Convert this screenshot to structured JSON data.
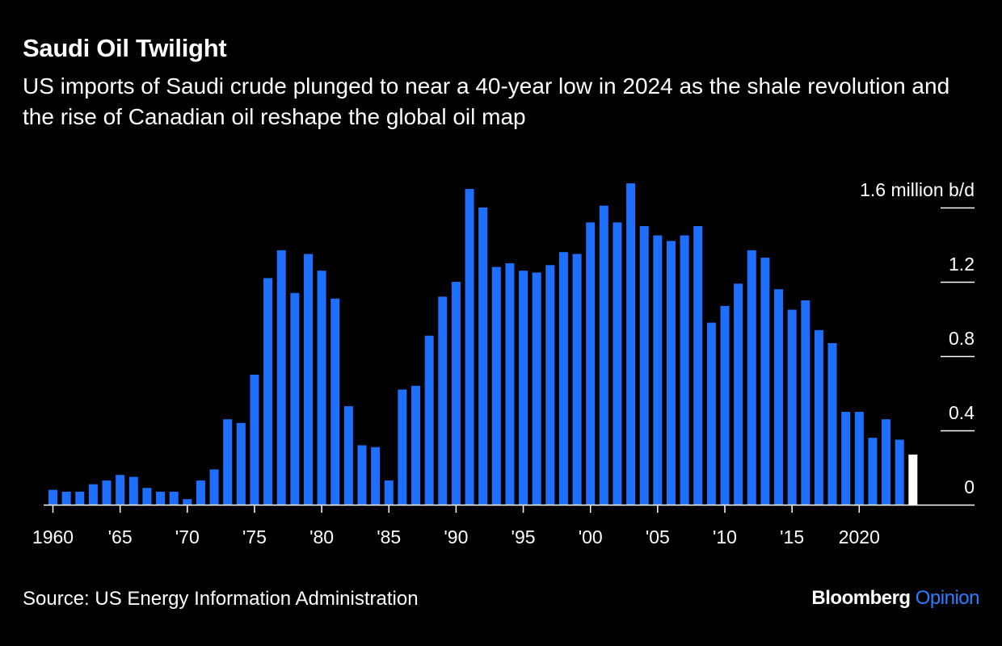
{
  "header": {
    "title": "Saudi Oil Twilight",
    "subtitle": "US imports of Saudi crude plunged to near a 40-year low in 2024 as the shale revolution and the rise of Canadian oil reshape the global oil map"
  },
  "footer": {
    "source": "Source: US Energy Information Administration",
    "brand_name": "Bloomberg",
    "brand_suffix": "Opinion"
  },
  "colors": {
    "bar": "#1f6fff",
    "highlight_bar": "#ffffff",
    "background": "#000000",
    "text": "#ffffff",
    "brand_accent": "#2b7fff"
  },
  "chart_data": {
    "type": "bar",
    "title": "Saudi Oil Twilight",
    "subtitle": "US imports of Saudi crude plunged to near a 40-year low in 2024 as the shale revolution and the rise of Canadian oil reshape the global oil map",
    "unit": "million b/d",
    "x": [
      1960,
      1961,
      1962,
      1963,
      1964,
      1965,
      1966,
      1967,
      1968,
      1969,
      1970,
      1971,
      1972,
      1973,
      1974,
      1975,
      1976,
      1977,
      1978,
      1979,
      1980,
      1981,
      1982,
      1983,
      1984,
      1985,
      1986,
      1987,
      1988,
      1989,
      1990,
      1991,
      1992,
      1993,
      1994,
      1995,
      1996,
      1997,
      1998,
      1999,
      2000,
      2001,
      2002,
      2003,
      2004,
      2005,
      2006,
      2007,
      2008,
      2009,
      2010,
      2011,
      2012,
      2013,
      2014,
      2015,
      2016,
      2017,
      2018,
      2019,
      2020,
      2021,
      2022,
      2023,
      2024
    ],
    "values": [
      0.08,
      0.07,
      0.07,
      0.11,
      0.13,
      0.16,
      0.15,
      0.09,
      0.07,
      0.07,
      0.03,
      0.13,
      0.19,
      0.46,
      0.44,
      0.7,
      1.22,
      1.37,
      1.14,
      1.35,
      1.26,
      1.11,
      0.53,
      0.32,
      0.31,
      0.13,
      0.62,
      0.64,
      0.91,
      1.12,
      1.2,
      1.7,
      1.6,
      1.28,
      1.3,
      1.26,
      1.25,
      1.29,
      1.36,
      1.35,
      1.52,
      1.61,
      1.52,
      1.73,
      1.5,
      1.45,
      1.42,
      1.45,
      1.5,
      0.98,
      1.07,
      1.19,
      1.37,
      1.33,
      1.16,
      1.05,
      1.1,
      0.94,
      0.87,
      0.5,
      0.5,
      0.36,
      0.46,
      0.35,
      0.27
    ],
    "highlight_last": true,
    "ylim": [
      0,
      1.6
    ],
    "y_ticks": [
      0,
      0.4,
      0.8,
      1.2,
      1.6
    ],
    "y_tick_labels": [
      "0",
      "0.4",
      "0.8",
      "1.2",
      "1.6 million b/d"
    ],
    "x_ticks": [
      1960,
      1965,
      1970,
      1975,
      1980,
      1985,
      1990,
      1995,
      2000,
      2005,
      2010,
      2015,
      2020
    ],
    "x_tick_labels": [
      "1960",
      "'65",
      "'70",
      "'75",
      "'80",
      "'85",
      "'90",
      "'95",
      "'00",
      "'05",
      "'10",
      "'15",
      "2020"
    ],
    "grid": false,
    "legend": "none"
  }
}
